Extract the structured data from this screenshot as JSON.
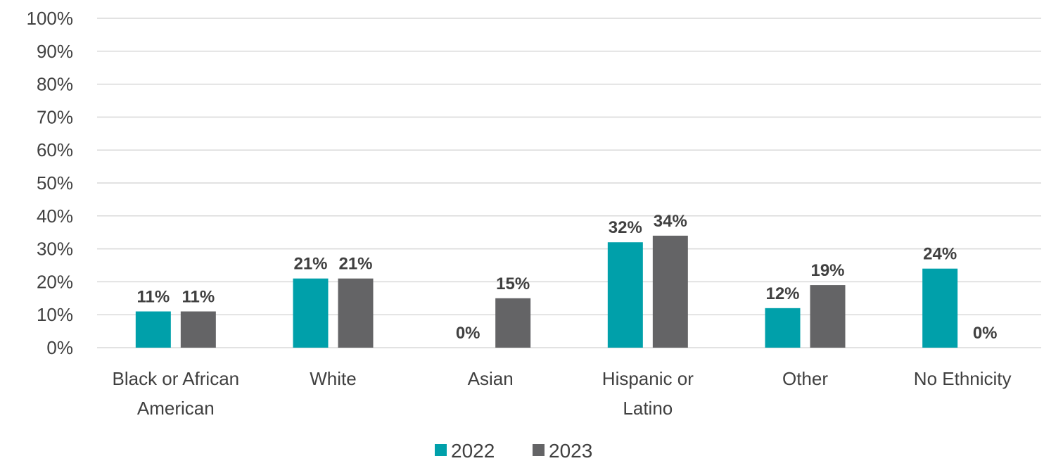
{
  "chart_data": {
    "type": "bar",
    "categories": [
      [
        "Black or African",
        "American"
      ],
      [
        "White"
      ],
      [
        "Asian"
      ],
      [
        "Hispanic or",
        "Latino"
      ],
      [
        "Other"
      ],
      [
        "No Ethnicity"
      ]
    ],
    "series": [
      {
        "name": "2022",
        "values": [
          11,
          21,
          0,
          32,
          12,
          24
        ],
        "labels": [
          "11%",
          "21%",
          "0%",
          "32%",
          "12%",
          "24%"
        ]
      },
      {
        "name": "2023",
        "values": [
          11,
          21,
          15,
          34,
          19,
          0
        ],
        "labels": [
          "11%",
          "21%",
          "15%",
          "34%",
          "19%",
          "0%"
        ]
      }
    ],
    "ylim": [
      0,
      100
    ],
    "yticks": [
      "0%",
      "10%",
      "20%",
      "30%",
      "40%",
      "50%",
      "60%",
      "70%",
      "80%",
      "90%",
      "100%"
    ],
    "grid": true,
    "legend_position": "bottom",
    "colors": [
      "#00A0AA",
      "#646466"
    ]
  }
}
